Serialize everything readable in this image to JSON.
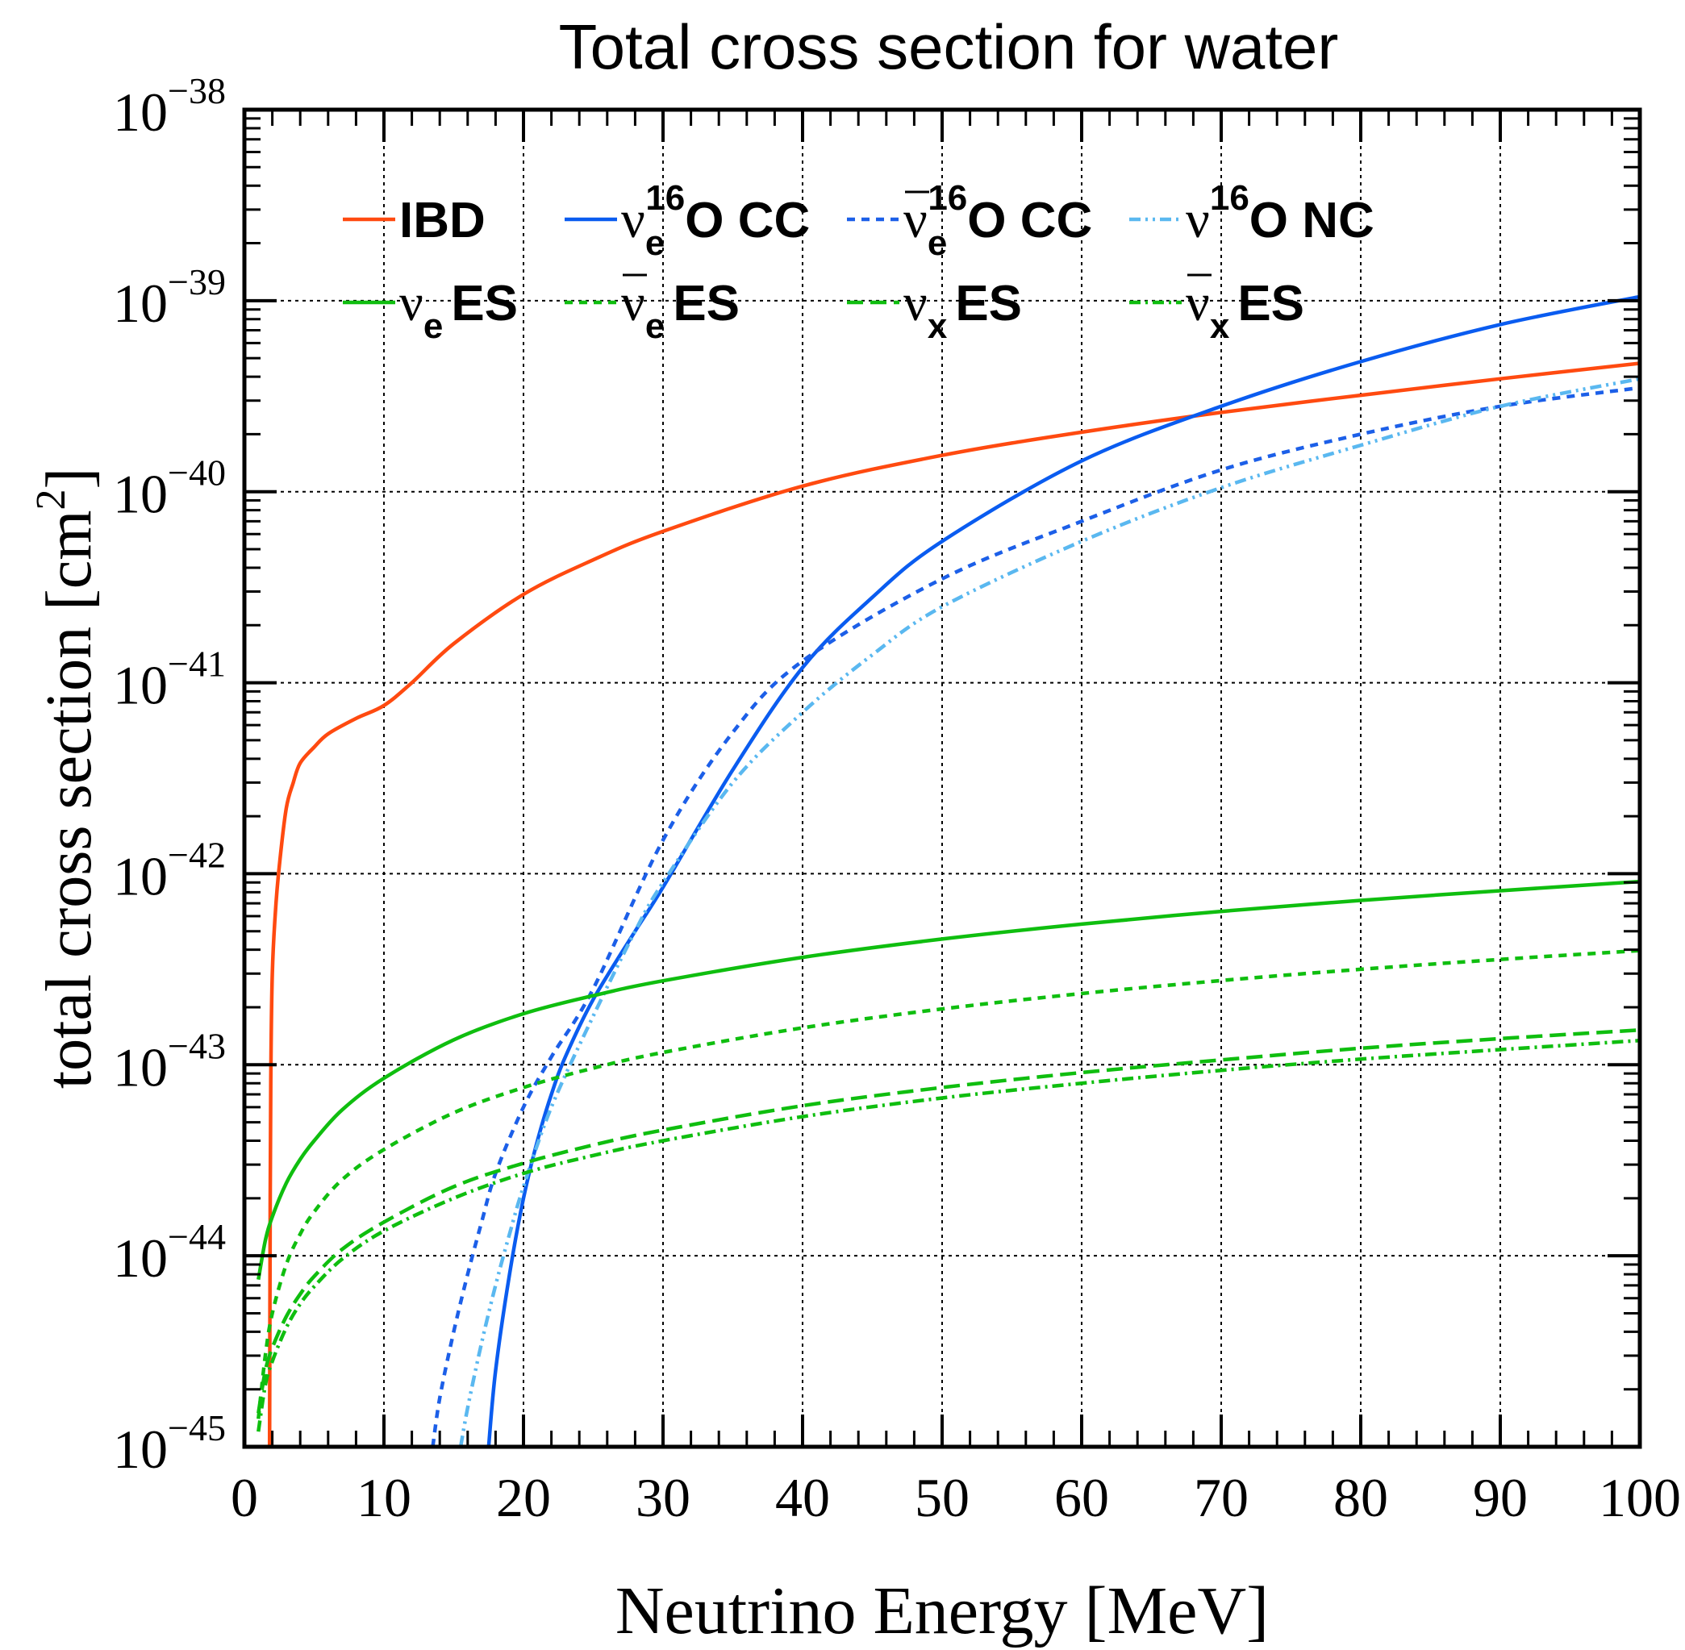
{
  "chart_data": {
    "type": "line",
    "title": "Total cross section for water",
    "xlabel": "Neutrino Energy [MeV]",
    "ylabel_main": "total cross section [cm",
    "ylabel_sup": "2",
    "ylabel_close": "]",
    "xlim": [
      0,
      100
    ],
    "ylim": [
      1e-45,
      1e-38
    ],
    "yscale": "log",
    "grid": true,
    "legend_position": "top",
    "x_ticks": [
      "0",
      "10",
      "20",
      "30",
      "40",
      "50",
      "60",
      "70",
      "80",
      "90",
      "100"
    ],
    "y_ticks": [
      {
        "base": "10",
        "exp": "−45",
        "value": 1e-45
      },
      {
        "base": "10",
        "exp": "−44",
        "value": 1e-44
      },
      {
        "base": "10",
        "exp": "−43",
        "value": 1e-43
      },
      {
        "base": "10",
        "exp": "−42",
        "value": 1e-42
      },
      {
        "base": "10",
        "exp": "−41",
        "value": 1e-41
      },
      {
        "base": "10",
        "exp": "−40",
        "value": 1e-40
      },
      {
        "base": "10",
        "exp": "−39",
        "value": 1e-39
      },
      {
        "base": "10",
        "exp": "−38",
        "value": 1e-38
      }
    ],
    "series": [
      {
        "name": "IBD",
        "label": {
          "sym": "",
          "sub": "",
          "sup": "",
          "text": "IBD",
          "bar": false
        },
        "color": "#ff4a10",
        "dash": "solid",
        "x": [
          1.806,
          1.85,
          1.9,
          2.0,
          2.2,
          2.5,
          3,
          3.5,
          4,
          5,
          6,
          8,
          10,
          12,
          15,
          20,
          25,
          30,
          40,
          50,
          60,
          70,
          80,
          90,
          100
        ],
        "y": [
          1e-45,
          2e-44,
          1e-43,
          3e-43,
          6e-43,
          1.1e-42,
          2.2e-42,
          3e-42,
          3.8e-42,
          4.6e-42,
          5.4e-42,
          6.5e-42,
          7.6e-42,
          1e-41,
          1.6e-41,
          2.9e-41,
          4.4e-41,
          6.2e-41,
          1.07e-40,
          1.55e-40,
          2.05e-40,
          2.6e-40,
          3.2e-40,
          3.9e-40,
          4.7e-40
        ]
      },
      {
        "name": "νe 16O CC",
        "label": {
          "sym": "ν",
          "sub": "e",
          "sup": "16",
          "text": "O CC",
          "bar": false
        },
        "color": "#0a5cf0",
        "dash": "solid",
        "x": [
          17.5,
          18,
          19,
          20,
          21,
          22,
          23,
          25,
          28,
          30,
          35,
          40,
          45,
          50,
          60,
          70,
          80,
          90,
          100
        ],
        "y": [
          1e-45,
          2.5e-45,
          8e-45,
          2e-44,
          4e-44,
          7e-44,
          1.1e-43,
          2.2e-43,
          5e-43,
          8.5e-43,
          3.5e-42,
          1.2e-41,
          2.8e-41,
          5.5e-41,
          1.45e-40,
          2.8e-40,
          4.8e-40,
          7.5e-40,
          1.05e-39
        ]
      },
      {
        "name": "ν̄e 16O CC",
        "label": {
          "sym": "ν",
          "sub": "e",
          "sup": "16",
          "text": "O CC",
          "bar": true
        },
        "color": "#1c5fe8",
        "dash": "10,8",
        "x": [
          13.5,
          14,
          15,
          16,
          17,
          18,
          20,
          22,
          25,
          30,
          35,
          40,
          50,
          60,
          70,
          80,
          90,
          100
        ],
        "y": [
          1e-45,
          1.8e-45,
          4e-45,
          8e-45,
          1.5e-44,
          2.7e-44,
          6e-44,
          1.1e-43,
          2.5e-43,
          1.5e-42,
          5.5e-42,
          1.3e-41,
          3.5e-41,
          7e-41,
          1.3e-40,
          2e-40,
          2.8e-40,
          3.5e-40
        ]
      },
      {
        "name": "ν 16O NC",
        "label": {
          "sym": "ν",
          "sub": "",
          "sup": "16",
          "text": "O NC",
          "bar": false
        },
        "color": "#5ab8f0",
        "dash": "14,6,3,6,3,6",
        "x": [
          15.5,
          16,
          17,
          18,
          19,
          20,
          22,
          25,
          28,
          30,
          35,
          40,
          45,
          50,
          60,
          70,
          80,
          90,
          100
        ],
        "y": [
          1e-45,
          1.6e-45,
          3.5e-45,
          7e-45,
          1.3e-44,
          2.3e-44,
          6e-44,
          1.8e-43,
          5e-43,
          9e-43,
          3e-42,
          7e-42,
          1.4e-41,
          2.5e-41,
          5.5e-41,
          1.05e-40,
          1.75e-40,
          2.8e-40,
          3.9e-40
        ]
      },
      {
        "name": "νe ES",
        "label": {
          "sym": "ν",
          "sub": "e",
          "sup": "",
          "text": "ES",
          "bar": false
        },
        "color": "#0fbe0f",
        "dash": "solid",
        "x": [
          1,
          1.5,
          2,
          3,
          4,
          5,
          7,
          10,
          15,
          20,
          25,
          30,
          40,
          50,
          60,
          70,
          80,
          90,
          100
        ],
        "y": [
          7.5e-45,
          1.2e-44,
          1.6e-44,
          2.4e-44,
          3.2e-44,
          4e-44,
          5.8e-44,
          8.5e-44,
          1.35e-43,
          1.85e-43,
          2.3e-43,
          2.75e-43,
          3.65e-43,
          4.55e-43,
          5.45e-43,
          6.35e-43,
          7.25e-43,
          8.15e-43,
          9.1e-43
        ]
      },
      {
        "name": "ν̄e ES",
        "label": {
          "sym": "ν",
          "sub": "e",
          "sup": "",
          "text": "ES",
          "bar": true
        },
        "color": "#0fbe0f",
        "dash": "10,8",
        "x": [
          1,
          1.5,
          2,
          3,
          4,
          5,
          7,
          10,
          15,
          20,
          25,
          30,
          40,
          50,
          60,
          70,
          80,
          90,
          100
        ],
        "y": [
          1.4e-45,
          3e-45,
          5e-45,
          9e-45,
          1.3e-44,
          1.7e-44,
          2.5e-44,
          3.6e-44,
          5.6e-44,
          7.6e-44,
          9.6e-44,
          1.16e-43,
          1.56e-43,
          1.96e-43,
          2.36e-43,
          2.76e-43,
          3.16e-43,
          3.56e-43,
          3.96e-43
        ]
      },
      {
        "name": "νx ES",
        "label": {
          "sym": "ν",
          "sub": "x",
          "sup": "",
          "text": "ES",
          "bar": false
        },
        "color": "#0fbe0f",
        "dash": "20,9",
        "x": [
          1,
          1.5,
          2,
          3,
          4,
          5,
          7,
          10,
          15,
          20,
          25,
          30,
          40,
          50,
          60,
          70,
          80,
          90,
          100
        ],
        "y": [
          1.5e-45,
          2.5e-45,
          3.3e-45,
          4.8e-45,
          6.3e-45,
          7.8e-45,
          1.08e-44,
          1.5e-44,
          2.3e-44,
          3.05e-44,
          3.8e-44,
          4.55e-44,
          6.1e-44,
          7.6e-44,
          9.1e-44,
          1.06e-43,
          1.22e-43,
          1.37e-43,
          1.52e-43
        ]
      },
      {
        "name": "ν̄x ES",
        "label": {
          "sym": "ν",
          "sub": "x",
          "sup": "",
          "text": "ES",
          "bar": true
        },
        "color": "#0fbe0f",
        "dash": "14,6,3,6",
        "x": [
          1,
          1.5,
          2,
          3,
          4,
          5,
          7,
          10,
          15,
          20,
          25,
          30,
          40,
          50,
          60,
          70,
          80,
          90,
          100
        ],
        "y": [
          1.2e-45,
          2.1e-45,
          2.8e-45,
          4.2e-45,
          5.6e-45,
          6.9e-45,
          9.6e-45,
          1.35e-44,
          2e-44,
          2.7e-44,
          3.35e-44,
          4e-44,
          5.35e-44,
          6.7e-44,
          8e-44,
          9.35e-44,
          1.07e-43,
          1.2e-43,
          1.34e-43
        ]
      }
    ]
  }
}
